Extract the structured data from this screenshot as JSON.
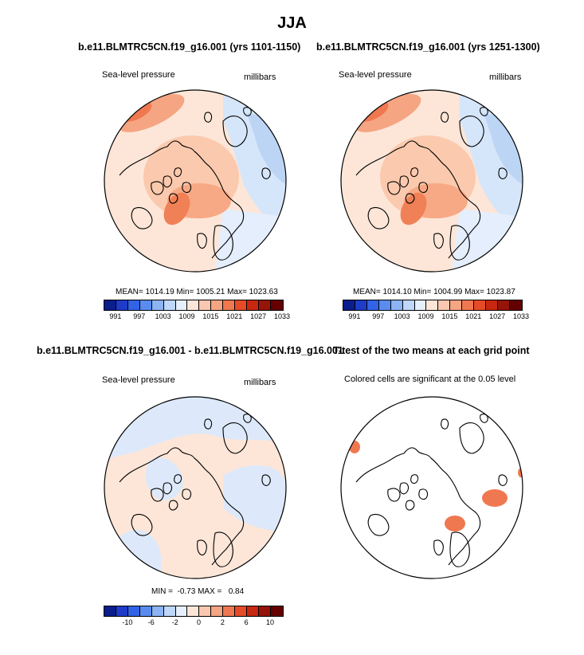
{
  "figure": {
    "title": "JJA",
    "panel1": {
      "title": "b.e11.BLMTRC5CN.f19_g16.001 (yrs 1101-1150)",
      "left_label": "Sea-level pressure",
      "right_label": "millibars",
      "stats": "MEAN= 1014.19  Min= 1005.21  Max= 1023.63"
    },
    "panel2": {
      "title": "b.e11.BLMTRC5CN.f19_g16.001 (yrs 1251-1300)",
      "left_label": "Sea-level pressure",
      "right_label": "millibars",
      "stats": "MEAN= 1014.10  Min= 1004.99  Max= 1023.87"
    },
    "panel3": {
      "title": "b.e11.BLMTRC5CN.f19_g16.001 - b.e11.BLMTRC5CN.f19_g16.001",
      "left_label": "Sea-level pressure",
      "right_label": "millibars",
      "stats": "MIN =  -0.73 MAX =   0.84"
    },
    "panel4": {
      "title": "T-test of the two means at each grid point",
      "label": "Colored cells are significant at the 0.05 level"
    }
  },
  "chart_data": [
    {
      "type": "heatmap",
      "title": "b.e11.BLMTRC5CN.f19_g16.001 (yrs 1101-1150)",
      "variable": "Sea-level pressure",
      "units": "millibars",
      "projection": "north polar stereographic",
      "stats": {
        "mean": 1014.19,
        "min": 1005.21,
        "max": 1023.63
      },
      "colorbar_ticks": [
        "991",
        "997",
        "1003",
        "1009",
        "1015",
        "1021",
        "1027",
        "1033"
      ]
    },
    {
      "type": "heatmap",
      "title": "b.e11.BLMTRC5CN.f19_g16.001 (yrs 1251-1300)",
      "variable": "Sea-level pressure",
      "units": "millibars",
      "projection": "north polar stereographic",
      "stats": {
        "mean": 1014.1,
        "min": 1004.99,
        "max": 1023.87
      },
      "colorbar_ticks": [
        "991",
        "997",
        "1003",
        "1009",
        "1015",
        "1021",
        "1027",
        "1033"
      ]
    },
    {
      "type": "heatmap",
      "title": "b.e11.BLMTRC5CN.f19_g16.001 - b.e11.BLMTRC5CN.f19_g16.001",
      "variable": "Sea-level pressure difference",
      "units": "millibars",
      "projection": "north polar stereographic",
      "stats": {
        "min": -0.73,
        "max": 0.84
      },
      "colorbar_ticks": [
        "-10",
        "-6",
        "-2",
        "0",
        "2",
        "6",
        "10"
      ]
    },
    {
      "type": "heatmap",
      "title": "T-test of the two means at each grid point",
      "significance_level": 0.05,
      "projection": "north polar stereographic"
    }
  ],
  "colorbars": {
    "abs": {
      "colors": [
        "#0a1e8c",
        "#1e3cc8",
        "#3263e6",
        "#5a8cf0",
        "#8cb4f5",
        "#bed7fa",
        "#e6f0fc",
        "#fde6d8",
        "#fac8b0",
        "#f5a582",
        "#f07850",
        "#e64b28",
        "#c8280f",
        "#96140a",
        "#640000"
      ]
    },
    "diff": {
      "colors": [
        "#0a1e8c",
        "#1e3cc8",
        "#3263e6",
        "#5a8cf0",
        "#8cb4f5",
        "#bed7fa",
        "#e6f0fc",
        "#fde6d8",
        "#fac8b0",
        "#f5a582",
        "#f07850",
        "#e64b28",
        "#c8280f",
        "#96140a",
        "#640000"
      ]
    }
  }
}
